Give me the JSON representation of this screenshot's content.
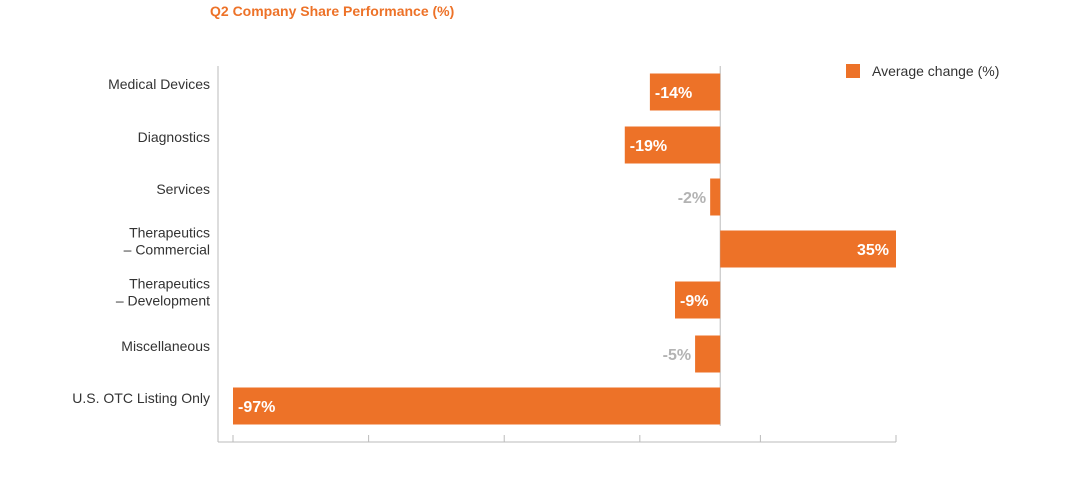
{
  "colors": {
    "accent": "#ED7228",
    "axis": "#BBBBBB",
    "label_inside": "#FFFFFF",
    "label_outside": "#B3B3B3",
    "text": "#333333"
  },
  "chart_data": {
    "type": "bar",
    "orientation": "horizontal",
    "title": "Q2 Company Share Performance (%)",
    "categories": [
      [
        "Medical Devices"
      ],
      [
        "Diagnostics"
      ],
      [
        "Services"
      ],
      [
        "Therapeutics",
        "– Commercial"
      ],
      [
        "Therapeutics",
        "– Development"
      ],
      [
        "Miscellaneous"
      ],
      [
        "U.S. OTC Listing Only"
      ]
    ],
    "series": [
      {
        "name": "Average change (%)",
        "values": [
          -14,
          -19,
          -2,
          35,
          -9,
          -5,
          -97
        ],
        "labels": [
          "-14%",
          "-19%",
          "-2%",
          "35%",
          "-9%",
          "-5%",
          "-97%"
        ]
      }
    ],
    "xlim": [
      -97,
      35
    ],
    "ticks": [
      -97,
      -70,
      -43,
      -16,
      8,
      35
    ],
    "grid": false,
    "legend_position": "top-right"
  }
}
